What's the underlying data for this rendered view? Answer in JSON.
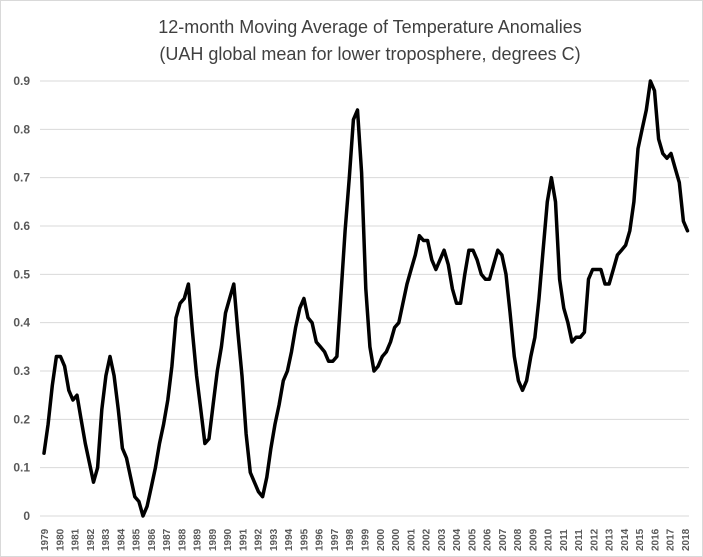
{
  "chart_data": {
    "type": "line",
    "title": [
      "12-month Moving Average of Temperature Anomalies",
      "(UAH global mean for lower troposphere, degrees C)"
    ],
    "xlabel": "",
    "ylabel": "",
    "ylim": [
      0,
      0.9
    ],
    "yticks": [
      "0",
      "0.1",
      "0.2",
      "0.3",
      "0.4",
      "0.5",
      "0.6",
      "0.7",
      "0.8",
      "0.9"
    ],
    "xtick_labels": [
      "1979",
      "1980",
      "1981",
      "1982",
      "1983",
      "1984",
      "1985",
      "1986",
      "1987",
      "1988",
      "1989",
      "1989",
      "1990",
      "1991",
      "1992",
      "1993",
      "1994",
      "1995",
      "1996",
      "1997",
      "1998",
      "1999",
      "2000",
      "2000",
      "2001",
      "2002",
      "2003",
      "2004",
      "2005",
      "2006",
      "2007",
      "2008",
      "2009",
      "2010",
      "2011",
      "2011",
      "2012",
      "2013",
      "2014",
      "2015",
      "2016",
      "2017",
      "2018"
    ],
    "grid": "horizontal",
    "legend": "none",
    "line_color": "#000000",
    "series": [
      {
        "name": "12-month moving average",
        "x_start": 1980.0,
        "x_step": 0.25,
        "values": [
          0.13,
          0.19,
          0.27,
          0.33,
          0.33,
          0.31,
          0.26,
          0.24,
          0.25,
          0.2,
          0.15,
          0.11,
          0.07,
          0.1,
          0.22,
          0.29,
          0.33,
          0.29,
          0.22,
          0.14,
          0.12,
          0.08,
          0.04,
          0.03,
          0.0,
          0.02,
          0.06,
          0.1,
          0.15,
          0.19,
          0.24,
          0.31,
          0.41,
          0.44,
          0.45,
          0.48,
          0.38,
          0.29,
          0.22,
          0.15,
          0.16,
          0.23,
          0.3,
          0.35,
          0.42,
          0.45,
          0.48,
          0.38,
          0.29,
          0.17,
          0.09,
          0.07,
          0.05,
          0.04,
          0.08,
          0.14,
          0.19,
          0.23,
          0.28,
          0.3,
          0.34,
          0.39,
          0.43,
          0.45,
          0.41,
          0.4,
          0.36,
          0.35,
          0.34,
          0.32,
          0.32,
          0.33,
          0.46,
          0.59,
          0.7,
          0.82,
          0.84,
          0.71,
          0.47,
          0.35,
          0.3,
          0.31,
          0.33,
          0.34,
          0.36,
          0.39,
          0.4,
          0.44,
          0.48,
          0.51,
          0.54,
          0.58,
          0.57,
          0.57,
          0.53,
          0.51,
          0.53,
          0.55,
          0.52,
          0.47,
          0.44,
          0.44,
          0.5,
          0.55,
          0.55,
          0.53,
          0.5,
          0.49,
          0.49,
          0.52,
          0.55,
          0.54,
          0.5,
          0.42,
          0.33,
          0.28,
          0.26,
          0.28,
          0.33,
          0.37,
          0.45,
          0.55,
          0.65,
          0.7,
          0.65,
          0.49,
          0.43,
          0.4,
          0.36,
          0.37,
          0.37,
          0.38,
          0.49,
          0.51,
          0.51,
          0.51,
          0.48,
          0.48,
          0.51,
          0.54,
          0.55,
          0.56,
          0.59,
          0.65,
          0.76,
          0.8,
          0.84,
          0.9,
          0.88,
          0.78,
          0.75,
          0.74,
          0.75,
          0.72,
          0.69,
          0.61,
          0.59
        ]
      }
    ]
  }
}
